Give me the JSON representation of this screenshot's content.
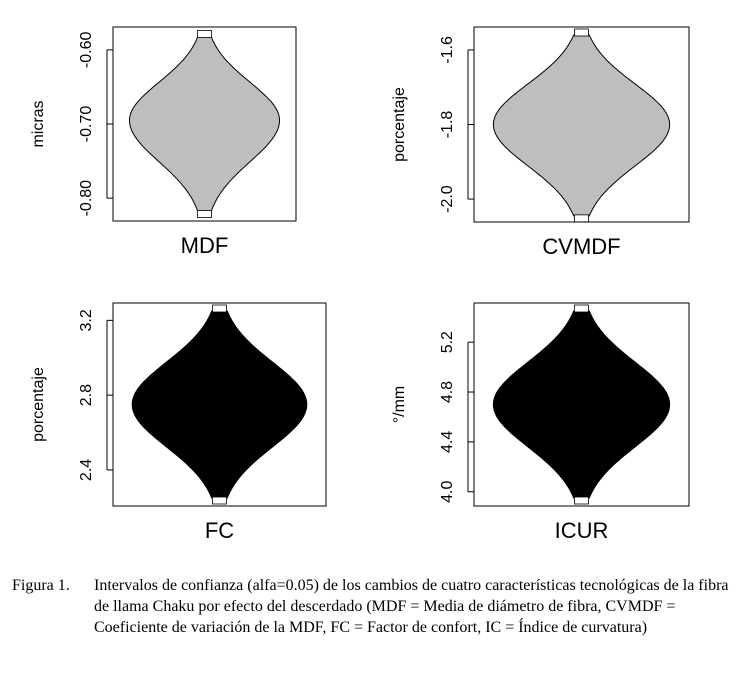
{
  "chart_data": [
    {
      "type": "violin",
      "xlabel": "MDF",
      "ylabel": "micras",
      "yticks": [
        "-0.60",
        "-0.70",
        "-0.80"
      ],
      "ytick_values": [
        -0.6,
        -0.7,
        -0.8
      ],
      "ylim": [
        -0.82,
        -0.58
      ],
      "center": -0.695,
      "ci": [
        -0.818,
        -0.582
      ],
      "halfwidth_max": 0.82,
      "fill": "#bebebe"
    },
    {
      "type": "violin",
      "xlabel": "CVMDF",
      "ylabel": "porcentaje",
      "yticks": [
        "-1.6",
        "-1.8",
        "-2.0"
      ],
      "ytick_values": [
        -1.6,
        -1.8,
        -2.0
      ],
      "ylim": [
        -2.04,
        -1.56
      ],
      "center": -1.8,
      "ci": [
        -2.045,
        -1.56
      ],
      "halfwidth_max": 0.82,
      "fill": "#bebebe"
    },
    {
      "type": "violin",
      "xlabel": "FC",
      "ylabel": "porcentaje",
      "yticks": [
        "3.2",
        "2.8",
        "2.4"
      ],
      "ytick_values": [
        3.2,
        2.8,
        2.4
      ],
      "ylim": [
        2.25,
        3.25
      ],
      "center": 2.75,
      "ci": [
        2.25,
        3.25
      ],
      "halfwidth_max": 0.82,
      "fill": "#000000"
    },
    {
      "type": "violin",
      "xlabel": "ICUR",
      "ylabel": "°/mm",
      "yticks": [
        "5.2",
        "4.8",
        "4.4",
        "4.0"
      ],
      "ytick_values": [
        5.2,
        4.8,
        4.4,
        4.0
      ],
      "ylim": [
        3.95,
        5.45
      ],
      "center": 4.7,
      "ci": [
        3.95,
        5.45
      ],
      "halfwidth_max": 0.82,
      "fill": "#000000"
    }
  ],
  "caption": {
    "label": "Figura 1.",
    "text": "Intervalos de confianza (alfa=0.05) de los cambios de cuatro características tecnológicas de la fibra de llama Chaku por efecto del descerdado (MDF = Media de diámetro de fibra, CVMDF = Coeficiente de variación de la MDF, FC = Factor de confort, IC = Índice de curvatura)"
  }
}
